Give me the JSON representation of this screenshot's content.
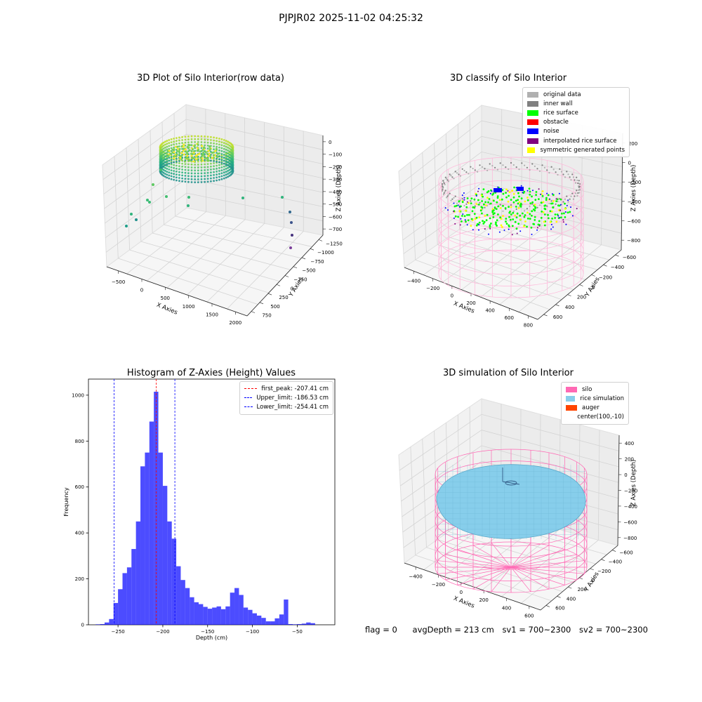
{
  "figure": {
    "suptitle": "PJPJR02 2025-11-02 04:25:32",
    "footer": {
      "flag": "flag = 0",
      "avg_depth": "avgDepth = 213 cm",
      "sv1": "sv1 = 700~2300",
      "sv2": "sv2 = 700~2300"
    }
  },
  "chart_data": [
    {
      "type": "scatter",
      "projection": "3d",
      "title": "3D Plot of Silo Interior(row data)",
      "xlabel": "X Axies",
      "ylabel": "Y Axies",
      "zlabel": "Z Axies (Depth)",
      "x_ticks": [
        "−500",
        "0",
        "500",
        "1000",
        "1500",
        "2000"
      ],
      "y_ticks": [
        "750",
        "500",
        "250",
        "0",
        "−250",
        "−500",
        "−750",
        "−1000",
        "−1250"
      ],
      "z_ticks": [
        "0",
        "−100",
        "−200",
        "−300",
        "−400",
        "−500",
        "−600",
        "−700"
      ],
      "colormap": "viridis",
      "series": [
        {
          "points": [
            [
              0,
              0,
              -120
            ],
            [
              200,
              100,
              -110
            ],
            [
              -150,
              150,
              -130
            ],
            [
              100,
              -200,
              -125
            ],
            [
              300,
              250,
              -115
            ],
            [
              -250,
              -150,
              -140
            ],
            [
              50,
              300,
              -118
            ]
          ]
        },
        {
          "points": [
            [
              -480,
              -300,
              -320
            ],
            [
              -520,
              -200,
              -340
            ],
            [
              -620,
              -550,
              -560
            ],
            [
              -700,
              -620,
              -610
            ],
            [
              -380,
              -100,
              -420
            ],
            [
              -160,
              250,
              -430
            ],
            [
              1350,
              -50,
              -440
            ],
            [
              1900,
              350,
              -420
            ],
            [
              1950,
              -300,
              -520
            ],
            [
              1960,
              -400,
              -580
            ],
            [
              1980,
              -500,
              -690
            ]
          ]
        }
      ]
    },
    {
      "type": "scatter",
      "projection": "3d",
      "title": "3D classify of Silo Interior",
      "xlabel": "X Axies",
      "ylabel": "Y Axies",
      "zlabel": "Z Axies (Depth)",
      "x_ticks": [
        "−400",
        "−200",
        "0",
        "200",
        "400",
        "600",
        "800"
      ],
      "y_ticks": [
        "600",
        "400",
        "200",
        "0",
        "−200",
        "−400",
        "−600"
      ],
      "z_ticks": [
        "200",
        "0",
        "−200",
        "−400",
        "−600",
        "−800"
      ],
      "legend": {
        "position": "top-right",
        "entries": [
          {
            "label": "original data",
            "color": "#b0b0b0"
          },
          {
            "label": "inner wall",
            "color": "#808080"
          },
          {
            "label": "rice surface",
            "color": "#00ff00"
          },
          {
            "label": "obstacle",
            "color": "#ff0000"
          },
          {
            "label": "noise",
            "color": "#0000ff"
          },
          {
            "label": "interpolated rice surface",
            "color": "#800080"
          },
          {
            "label": "symmetric generated points",
            "color": "#ffff00"
          }
        ]
      },
      "wireframe_color": "#ffb6d9"
    },
    {
      "type": "bar",
      "title": "Histogram of Z-Axies (Height) Values",
      "xlabel": "Depth (cm)",
      "ylabel": "Frequency",
      "xlim": [
        -283,
        -8
      ],
      "ylim": [
        0,
        1070
      ],
      "x_ticks": [
        -250,
        -200,
        -150,
        -100,
        -50
      ],
      "y_ticks": [
        0,
        200,
        400,
        600,
        800,
        1000
      ],
      "bar_color": "#0000ff",
      "bins": [
        [
          -275,
          -270,
          2
        ],
        [
          -270,
          -265,
          3
        ],
        [
          -265,
          -260,
          10
        ],
        [
          -260,
          -255,
          25
        ],
        [
          -255,
          -250,
          95
        ],
        [
          -250,
          -245,
          155
        ],
        [
          -245,
          -240,
          225
        ],
        [
          -240,
          -235,
          250
        ],
        [
          -235,
          -230,
          330
        ],
        [
          -230,
          -225,
          450
        ],
        [
          -225,
          -220,
          690
        ],
        [
          -220,
          -215,
          750
        ],
        [
          -215,
          -210,
          885
        ],
        [
          -210,
          -205,
          1015
        ],
        [
          -205,
          -200,
          750
        ],
        [
          -200,
          -195,
          605
        ],
        [
          -195,
          -190,
          450
        ],
        [
          -190,
          -185,
          375
        ],
        [
          -185,
          -180,
          255
        ],
        [
          -180,
          -175,
          195
        ],
        [
          -175,
          -170,
          160
        ],
        [
          -170,
          -165,
          120
        ],
        [
          -165,
          -160,
          98
        ],
        [
          -160,
          -155,
          90
        ],
        [
          -155,
          -150,
          78
        ],
        [
          -150,
          -145,
          70
        ],
        [
          -145,
          -140,
          75
        ],
        [
          -140,
          -135,
          80
        ],
        [
          -135,
          -130,
          68
        ],
        [
          -130,
          -125,
          80
        ],
        [
          -125,
          -120,
          140
        ],
        [
          -120,
          -115,
          160
        ],
        [
          -115,
          -110,
          130
        ],
        [
          -110,
          -105,
          75
        ],
        [
          -105,
          -100,
          65
        ],
        [
          -100,
          -95,
          50
        ],
        [
          -95,
          -90,
          40
        ],
        [
          -90,
          -85,
          30
        ],
        [
          -85,
          -80,
          15
        ],
        [
          -80,
          -75,
          15
        ],
        [
          -75,
          -70,
          28
        ],
        [
          -70,
          -65,
          45
        ],
        [
          -65,
          -60,
          110
        ],
        [
          -60,
          -55,
          3
        ],
        [
          -55,
          -50,
          2
        ],
        [
          -50,
          -45,
          3
        ],
        [
          -45,
          -40,
          5
        ],
        [
          -40,
          -35,
          10
        ],
        [
          -35,
          -30,
          7
        ]
      ],
      "reference_lines": [
        {
          "label": "first_peak: -207.41 cm",
          "x": -207.41,
          "color": "#ff0000"
        },
        {
          "label": "Upper_limit: -186.53 cm",
          "x": -186.53,
          "color": "#0000ff"
        },
        {
          "label": "Lower_limit: -254.41 cm",
          "x": -254.41,
          "color": "#0000ff"
        }
      ],
      "legend": {
        "position": "top-right"
      }
    },
    {
      "type": "surface",
      "projection": "3d",
      "title": "3D simulation of Silo Interior",
      "xlabel": "X Axies",
      "ylabel": "Y Axies",
      "zlabel": "Z Axies (Depth)",
      "x_ticks": [
        "−400",
        "−200",
        "0",
        "200",
        "400",
        "600"
      ],
      "y_ticks": [
        "600",
        "400",
        "200",
        "0",
        "−200",
        "−400",
        "−600"
      ],
      "z_ticks": [
        "400",
        "200",
        "0",
        "−200",
        "−400",
        "−600",
        "−800"
      ],
      "legend": {
        "position": "top-right",
        "entries": [
          {
            "label": "silo",
            "color": "#ff69b4"
          },
          {
            "label": "rice simulation",
            "color": "#87ceeb"
          },
          {
            "label": "auger",
            "color": "#ff4500"
          },
          {
            "label": "center(100,-10)",
            "color": ""
          }
        ]
      }
    }
  ]
}
